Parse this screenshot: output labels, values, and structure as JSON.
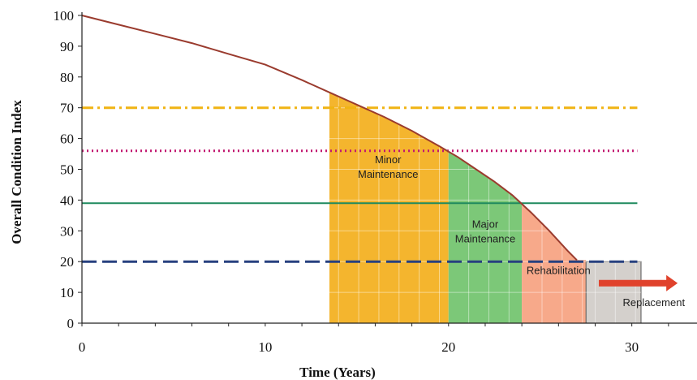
{
  "chart_data": {
    "type": "area",
    "xlabel": "Time (Years)",
    "ylabel": "Overall Condition Index",
    "xlim": [
      0,
      30.5
    ],
    "ylim": [
      0,
      100
    ],
    "xticks": [
      "0",
      "10",
      "20",
      "30"
    ],
    "yticks": [
      "0",
      "10",
      "20",
      "30",
      "40",
      "50",
      "60",
      "70",
      "80",
      "90",
      "100"
    ],
    "grid": false,
    "curve": {
      "color": "#9a3b2e",
      "x": [
        0,
        2,
        4,
        6,
        8,
        10,
        12,
        13.5,
        15,
        16.5,
        18,
        19.5,
        20.5,
        21.5,
        22.5,
        23.5,
        24.5,
        25.5,
        26.5,
        27.0
      ],
      "y": [
        100,
        97,
        94,
        91,
        87.5,
        84,
        79,
        75,
        71,
        67,
        62.5,
        57.5,
        54,
        50,
        46,
        41.5,
        36,
        30,
        23.5,
        20.5
      ]
    },
    "thresholds": [
      {
        "y": 70,
        "style": "dash-dot",
        "color": "#f0b414"
      },
      {
        "y": 56,
        "style": "dotted",
        "color": "#c21870"
      },
      {
        "y": 39,
        "style": "solid",
        "color": "#1f8a5e"
      },
      {
        "y": 20,
        "style": "dashed",
        "color": "#27407f"
      }
    ],
    "zones": [
      {
        "label_lines": [
          "Minor",
          "Maintenance"
        ],
        "x0": 13.5,
        "x1": 20.0,
        "color": "#f4b52e",
        "label_x": 16.7,
        "label_y": 52
      },
      {
        "label_lines": [
          "Major",
          "Maintenance"
        ],
        "x0": 20.0,
        "x1": 24.0,
        "color": "#7cc878",
        "label_x": 22.0,
        "label_y": 31
      },
      {
        "label_lines": [
          "Rehabilitation"
        ],
        "x0": 24.0,
        "x1": 27.5,
        "color": "#f7a98a",
        "label_x": 26.0,
        "label_y": 16
      },
      {
        "label_lines": [
          "Replacement"
        ],
        "x0": 27.5,
        "x1": 30.5,
        "color": "#d4d0cc",
        "label_x": 31.2,
        "label_y": 5.5
      }
    ],
    "arrow": {
      "x0": 28.2,
      "x1": 32.5,
      "y": 13,
      "color": "#e0422c"
    }
  }
}
